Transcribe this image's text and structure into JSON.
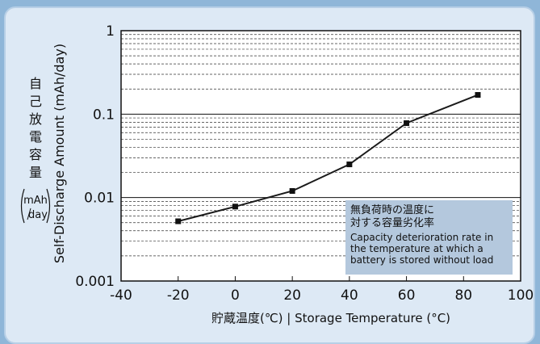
{
  "chart_data": {
    "type": "line",
    "x": [
      -20,
      0,
      20,
      40,
      60,
      85
    ],
    "series": [
      {
        "values": [
          0.0052,
          0.0078,
          0.012,
          0.025,
          0.078,
          0.17
        ]
      }
    ],
    "xlim": [
      -40,
      100
    ],
    "ylim": [
      0.001,
      1
    ],
    "y_scale": "log",
    "x_ticks": [
      "-40",
      "-20",
      "0",
      "20",
      "40",
      "60",
      "80",
      "100"
    ],
    "y_ticks": [
      "0.001",
      "0.01",
      "0.1",
      "1"
    ],
    "xlabel": "貯蔵温度(℃) | Storage Temperature (°C)",
    "ylabel_jp": "自己放電容量",
    "ylabel_jp_unit": [
      "mAh",
      "day"
    ],
    "ylabel": "Self-Discharge Amount (mAh/day)",
    "annotation": {
      "jp_lines": [
        "無負荷時の温度に",
        "対する容量劣化率"
      ],
      "en_lines": [
        "Capacity deterioration rate in",
        "the temperature at which a",
        "battery is stored without load"
      ]
    },
    "grid": true,
    "legend": "none",
    "colors": {
      "line": "#1a1a1a",
      "marker": "#111111",
      "annotation_bg": "#b4c8dd",
      "plot_bg": "#ffffff",
      "panel_bg": "#dde9f5",
      "outer_bg": "#8fb6d8"
    }
  }
}
